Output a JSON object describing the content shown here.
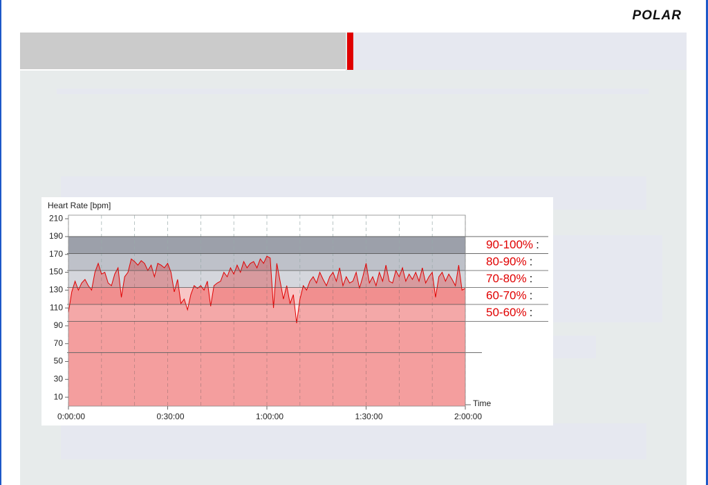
{
  "logo": "POLAR",
  "chart_data": {
    "type": "area",
    "y_label": "Heart Rate [bpm]",
    "x_label": "Time",
    "xlim": [
      0,
      120
    ],
    "xticks": [
      {
        "value": 0,
        "label": "0:00:00"
      },
      {
        "value": 30,
        "label": "0:30:00"
      },
      {
        "value": 60,
        "label": "1:00:00"
      },
      {
        "value": 90,
        "label": "1:30:00"
      },
      {
        "value": 120,
        "label": "2:00:00"
      }
    ],
    "xminor": [
      10,
      20,
      40,
      50,
      70,
      80,
      100,
      110
    ],
    "ylim": [
      0,
      214
    ],
    "yticks": [
      10,
      30,
      50,
      70,
      90,
      110,
      130,
      150,
      170,
      190,
      210
    ],
    "reference_line": 60,
    "above_zone_color": "#ffffff",
    "below_zone_color": "#fddcdc",
    "separator": ":",
    "zones": [
      {
        "label": "90-100%",
        "from": 171,
        "to": 190,
        "color": "#9ca0aa"
      },
      {
        "label": "80-90%",
        "from": 152,
        "to": 171,
        "color": "#bec1c9"
      },
      {
        "label": "70-80%",
        "from": 133,
        "to": 152,
        "color": "#d4d6dc"
      },
      {
        "label": "60-70%",
        "from": 114,
        "to": 133,
        "color": "#f8c6c6"
      },
      {
        "label": "50-60%",
        "from": 95,
        "to": 114,
        "color": "#fde9e9"
      }
    ],
    "series": [
      {
        "name": "Heart Rate",
        "color": "#e00000",
        "x": [
          0,
          1,
          2,
          3,
          4,
          5,
          6,
          7,
          8,
          9,
          10,
          11,
          12,
          13,
          14,
          15,
          16,
          17,
          18,
          19,
          20,
          21,
          22,
          23,
          24,
          25,
          26,
          27,
          28,
          29,
          30,
          31,
          32,
          33,
          34,
          35,
          36,
          37,
          38,
          39,
          40,
          41,
          42,
          43,
          44,
          45,
          46,
          47,
          48,
          49,
          50,
          51,
          52,
          53,
          54,
          55,
          56,
          57,
          58,
          59,
          60,
          61,
          62,
          63,
          64,
          65,
          66,
          67,
          68,
          69,
          70,
          71,
          72,
          73,
          74,
          75,
          76,
          77,
          78,
          79,
          80,
          81,
          82,
          83,
          84,
          85,
          86,
          87,
          88,
          89,
          90,
          91,
          92,
          93,
          94,
          95,
          96,
          97,
          98,
          99,
          100,
          101,
          102,
          103,
          104,
          105,
          106,
          107,
          108,
          109,
          110,
          111,
          112,
          113,
          114,
          115,
          116,
          117,
          118,
          119,
          120
        ],
        "values": [
          105,
          128,
          140,
          130,
          138,
          142,
          135,
          130,
          150,
          160,
          148,
          150,
          138,
          135,
          148,
          155,
          122,
          145,
          150,
          165,
          162,
          158,
          163,
          160,
          152,
          158,
          145,
          160,
          158,
          155,
          160,
          150,
          128,
          142,
          115,
          120,
          108,
          125,
          135,
          132,
          135,
          130,
          140,
          112,
          135,
          138,
          140,
          150,
          145,
          155,
          148,
          158,
          150,
          162,
          155,
          160,
          162,
          155,
          165,
          160,
          168,
          166,
          110,
          160,
          140,
          120,
          135,
          115,
          125,
          93,
          120,
          135,
          130,
          140,
          145,
          138,
          150,
          142,
          135,
          145,
          150,
          140,
          155,
          135,
          145,
          138,
          140,
          150,
          132,
          145,
          160,
          138,
          145,
          135,
          150,
          140,
          158,
          140,
          138,
          152,
          145,
          155,
          140,
          148,
          142,
          150,
          140,
          155,
          138,
          145,
          150,
          122,
          145,
          150,
          140,
          148,
          142,
          135,
          158,
          130,
          132
        ]
      }
    ]
  }
}
